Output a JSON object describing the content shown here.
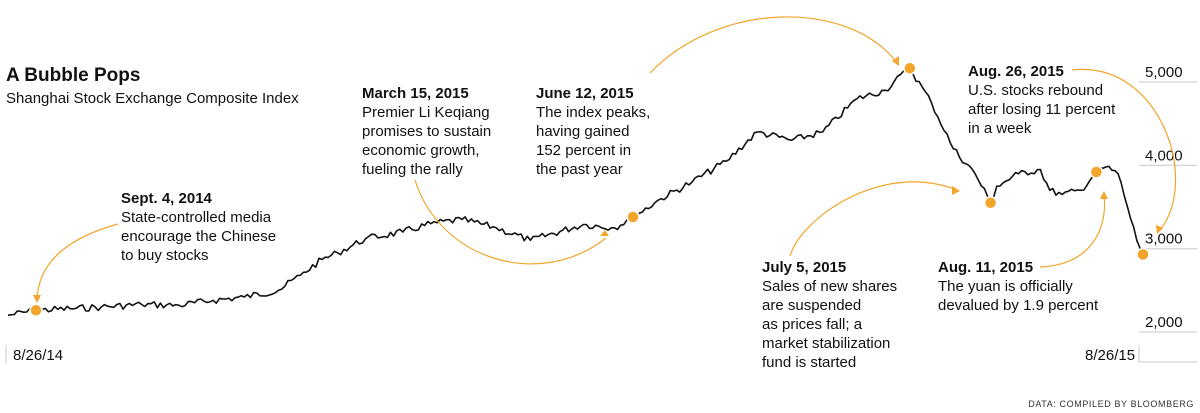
{
  "chart_data": {
    "type": "line",
    "title": "A Bubble Pops",
    "subtitle": "Shanghai Stock Exchange Composite Index",
    "source": "DATA: COMPILED BY BLOOMBERG",
    "x_start_label": "8/26/14",
    "x_end_label": "8/26/15",
    "ylim": [
      2000,
      5200
    ],
    "y_ticks": [
      {
        "value": 5000,
        "label": "5,000"
      },
      {
        "value": 4000,
        "label": "4,000"
      },
      {
        "value": 3000,
        "label": "3,000"
      },
      {
        "value": 2000,
        "label": "2,000"
      }
    ],
    "series": [
      {
        "x": [
          "2014-08-26",
          "2014-09-04",
          "2014-09-15",
          "2014-09-25",
          "2014-10-08",
          "2014-10-20",
          "2014-10-31",
          "2014-11-10",
          "2014-11-21",
          "2014-11-28",
          "2014-12-05",
          "2014-12-10",
          "2014-12-19",
          "2014-12-31",
          "2015-01-09",
          "2015-01-19",
          "2015-01-30",
          "2015-02-10",
          "2015-02-27",
          "2015-03-09",
          "2015-03-15",
          "2015-03-24",
          "2015-04-03",
          "2015-04-14",
          "2015-04-24",
          "2015-05-05",
          "2015-05-15",
          "2015-05-26",
          "2015-06-04",
          "2015-06-12",
          "2015-06-19",
          "2015-06-26",
          "2015-07-03",
          "2015-07-08",
          "2015-07-10",
          "2015-07-17",
          "2015-07-24",
          "2015-07-27",
          "2015-07-31",
          "2015-08-06",
          "2015-08-11",
          "2015-08-14",
          "2015-08-18",
          "2015-08-21",
          "2015-08-24",
          "2015-08-26"
        ],
        "y": [
          2200,
          2260,
          2280,
          2300,
          2330,
          2320,
          2380,
          2420,
          2500,
          2680,
          2870,
          2950,
          3120,
          3200,
          3300,
          3350,
          3250,
          3100,
          3290,
          3250,
          3380,
          3600,
          3800,
          4050,
          4400,
          4300,
          4400,
          4800,
          4900,
          5166,
          4750,
          4200,
          3900,
          3550,
          3750,
          3900,
          3950,
          3700,
          3650,
          3700,
          3920,
          3980,
          3900,
          3500,
          3100,
          2930
        ]
      }
    ],
    "highlighted_points": [
      {
        "date": "2014-09-04",
        "value": 2260
      },
      {
        "date": "2015-03-15",
        "value": 3380
      },
      {
        "date": "2015-06-12",
        "value": 5166
      },
      {
        "date": "2015-07-08",
        "value": 3550
      },
      {
        "date": "2015-08-11",
        "value": 3920
      },
      {
        "date": "2015-08-26",
        "value": 2930
      }
    ],
    "annotations": [
      {
        "date": "Sept. 4, 2014",
        "lines": [
          "State-controlled media",
          "encourage the Chinese",
          "to buy stocks"
        ]
      },
      {
        "date": "March 15, 2015",
        "lines": [
          "Premier Li Keqiang",
          "promises to sustain",
          "economic growth,",
          "fueling the rally"
        ]
      },
      {
        "date": "June 12, 2015",
        "lines": [
          "The index peaks,",
          "having gained",
          "152 percent in",
          "the past year"
        ]
      },
      {
        "date": "July 5, 2015",
        "lines": [
          "Sales of new shares",
          "are suspended",
          "as prices fall; a",
          "market stabilization",
          "fund is started"
        ]
      },
      {
        "date": "Aug. 11, 2015",
        "lines": [
          "The yuan is officially",
          "devalued by 1.9 percent"
        ]
      },
      {
        "date": "Aug. 26, 2015",
        "lines": [
          "U.S. stocks rebound",
          "after losing 11 percent",
          "in a week"
        ]
      }
    ]
  }
}
